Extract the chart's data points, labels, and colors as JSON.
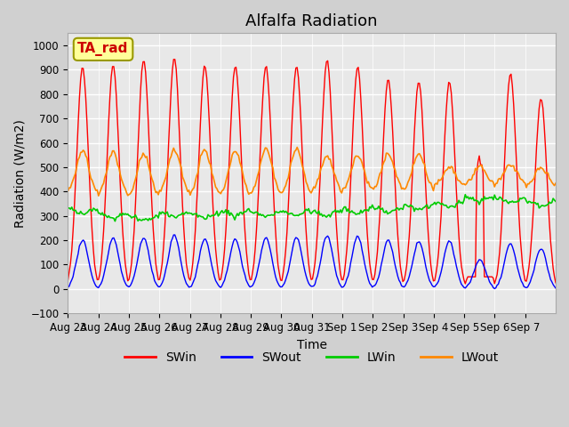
{
  "title": "Alfalfa Radiation",
  "xlabel": "Time",
  "ylabel": "Radiation (W/m2)",
  "ylim": [
    -100,
    1050
  ],
  "annotation_text": "TA_rad",
  "annotation_box_color": "#ffff99",
  "annotation_border_color": "#999900",
  "annotation_text_color": "#cc0000",
  "colors": {
    "SWin": "#ff0000",
    "SWout": "#0000ff",
    "LWin": "#00cc00",
    "LWout": "#ff8800"
  },
  "tick_labels": [
    "Aug 23",
    "Aug 24",
    "Aug 25",
    "Aug 26",
    "Aug 27",
    "Aug 28",
    "Aug 29",
    "Aug 30",
    "Aug 31",
    "Sep 1",
    "Sep 2",
    "Sep 3",
    "Sep 4",
    "Sep 5",
    "Sep 6",
    "Sep 7"
  ],
  "plot_bg_color": "#e8e8e8",
  "fig_bg_color": "#d0d0d0",
  "grid_color": "#ffffff",
  "title_fontsize": 13,
  "label_fontsize": 10,
  "tick_fontsize": 8.5,
  "legend_fontsize": 10,
  "sw_peaks": [
    910,
    920,
    940,
    950,
    915,
    915,
    915,
    915,
    940,
    910,
    860,
    850,
    850,
    550,
    880,
    780
  ],
  "swout_peaks": [
    200,
    210,
    210,
    220,
    205,
    205,
    210,
    210,
    220,
    215,
    200,
    195,
    195,
    120,
    185,
    165
  ],
  "lwin_base": [
    330,
    310,
    300,
    315,
    310,
    320,
    315,
    320,
    320,
    330,
    335,
    345,
    355,
    380,
    375,
    360
  ],
  "lwout_base": [
    390,
    380,
    375,
    390,
    380,
    380,
    385,
    385,
    395,
    400,
    405,
    405,
    420,
    425,
    430,
    420
  ],
  "lwout_bump": [
    180,
    180,
    180,
    180,
    190,
    190,
    190,
    190,
    150,
    150,
    150,
    150,
    80,
    80,
    80,
    80
  ],
  "yticks": [
    -100,
    0,
    100,
    200,
    300,
    400,
    500,
    600,
    700,
    800,
    900,
    1000
  ]
}
